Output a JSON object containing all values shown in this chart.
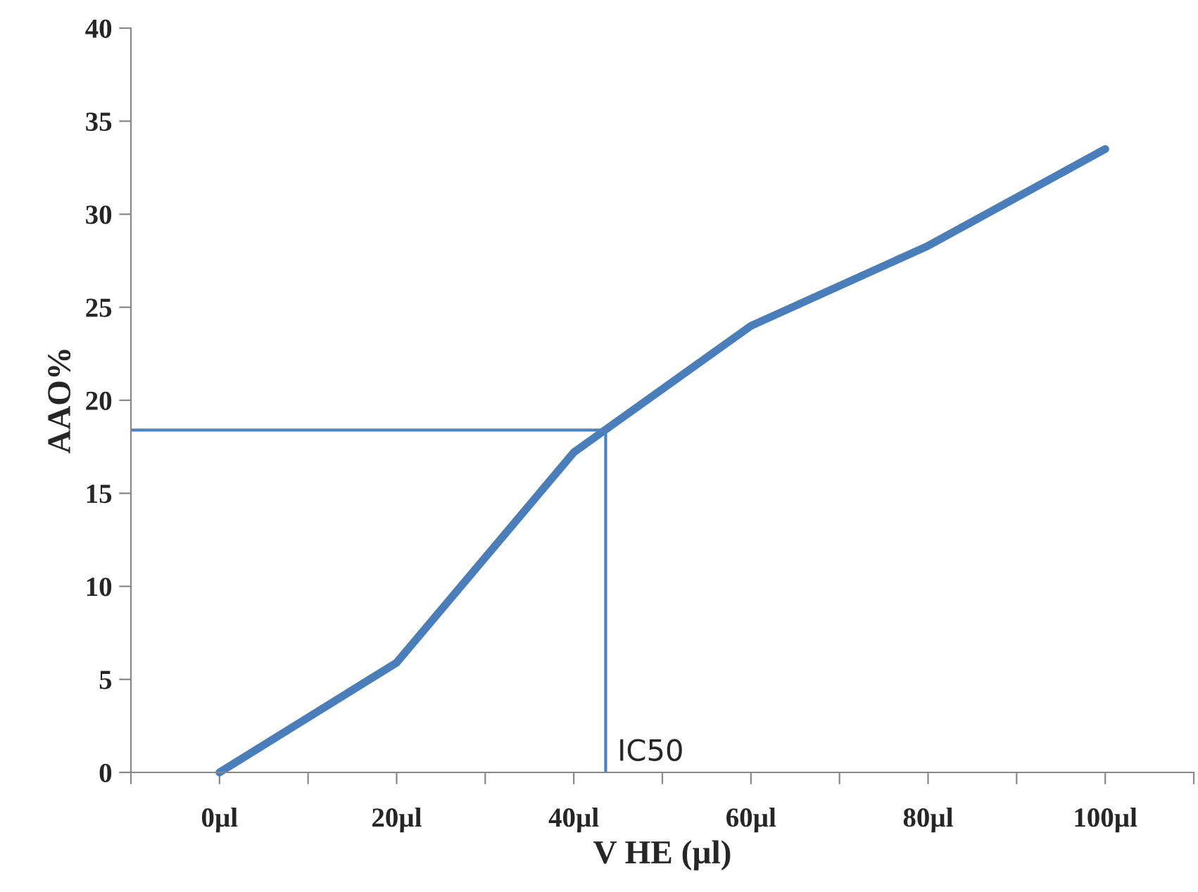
{
  "chart_data": {
    "type": "line",
    "xlabel": "V HE (µl)",
    "ylabel": "AAO%",
    "x": [
      0,
      20,
      40,
      60,
      80,
      100
    ],
    "series": [
      {
        "color": "#4a7ebb",
        "values": [
          0,
          5.9,
          17.2,
          24.0,
          28.3,
          33.5
        ]
      }
    ],
    "xlim": [
      -10,
      110
    ],
    "xticks": [
      {
        "value": -10,
        "label": null
      },
      {
        "value": 0,
        "label": "0µl"
      },
      {
        "value": 10,
        "label": null
      },
      {
        "value": 20,
        "label": "20µl"
      },
      {
        "value": 30,
        "label": null
      },
      {
        "value": 40,
        "label": "40µl"
      },
      {
        "value": 50,
        "label": null
      },
      {
        "value": 60,
        "label": "60µl"
      },
      {
        "value": 70,
        "label": null
      },
      {
        "value": 80,
        "label": "80µl"
      },
      {
        "value": 90,
        "label": null
      },
      {
        "value": 100,
        "label": "100µl"
      },
      {
        "value": 110,
        "label": null
      }
    ],
    "ylim": [
      0,
      40
    ],
    "yticks": [
      0,
      5,
      10,
      15,
      20,
      25,
      30,
      35,
      40
    ],
    "ref_lines": [
      {
        "axis": "y",
        "value": 18.4,
        "color": "#4f81bd"
      },
      {
        "axis": "x",
        "value": 43.6,
        "label": "IC50",
        "color": "#4f81bd"
      }
    ],
    "grid": false,
    "legend": false
  }
}
